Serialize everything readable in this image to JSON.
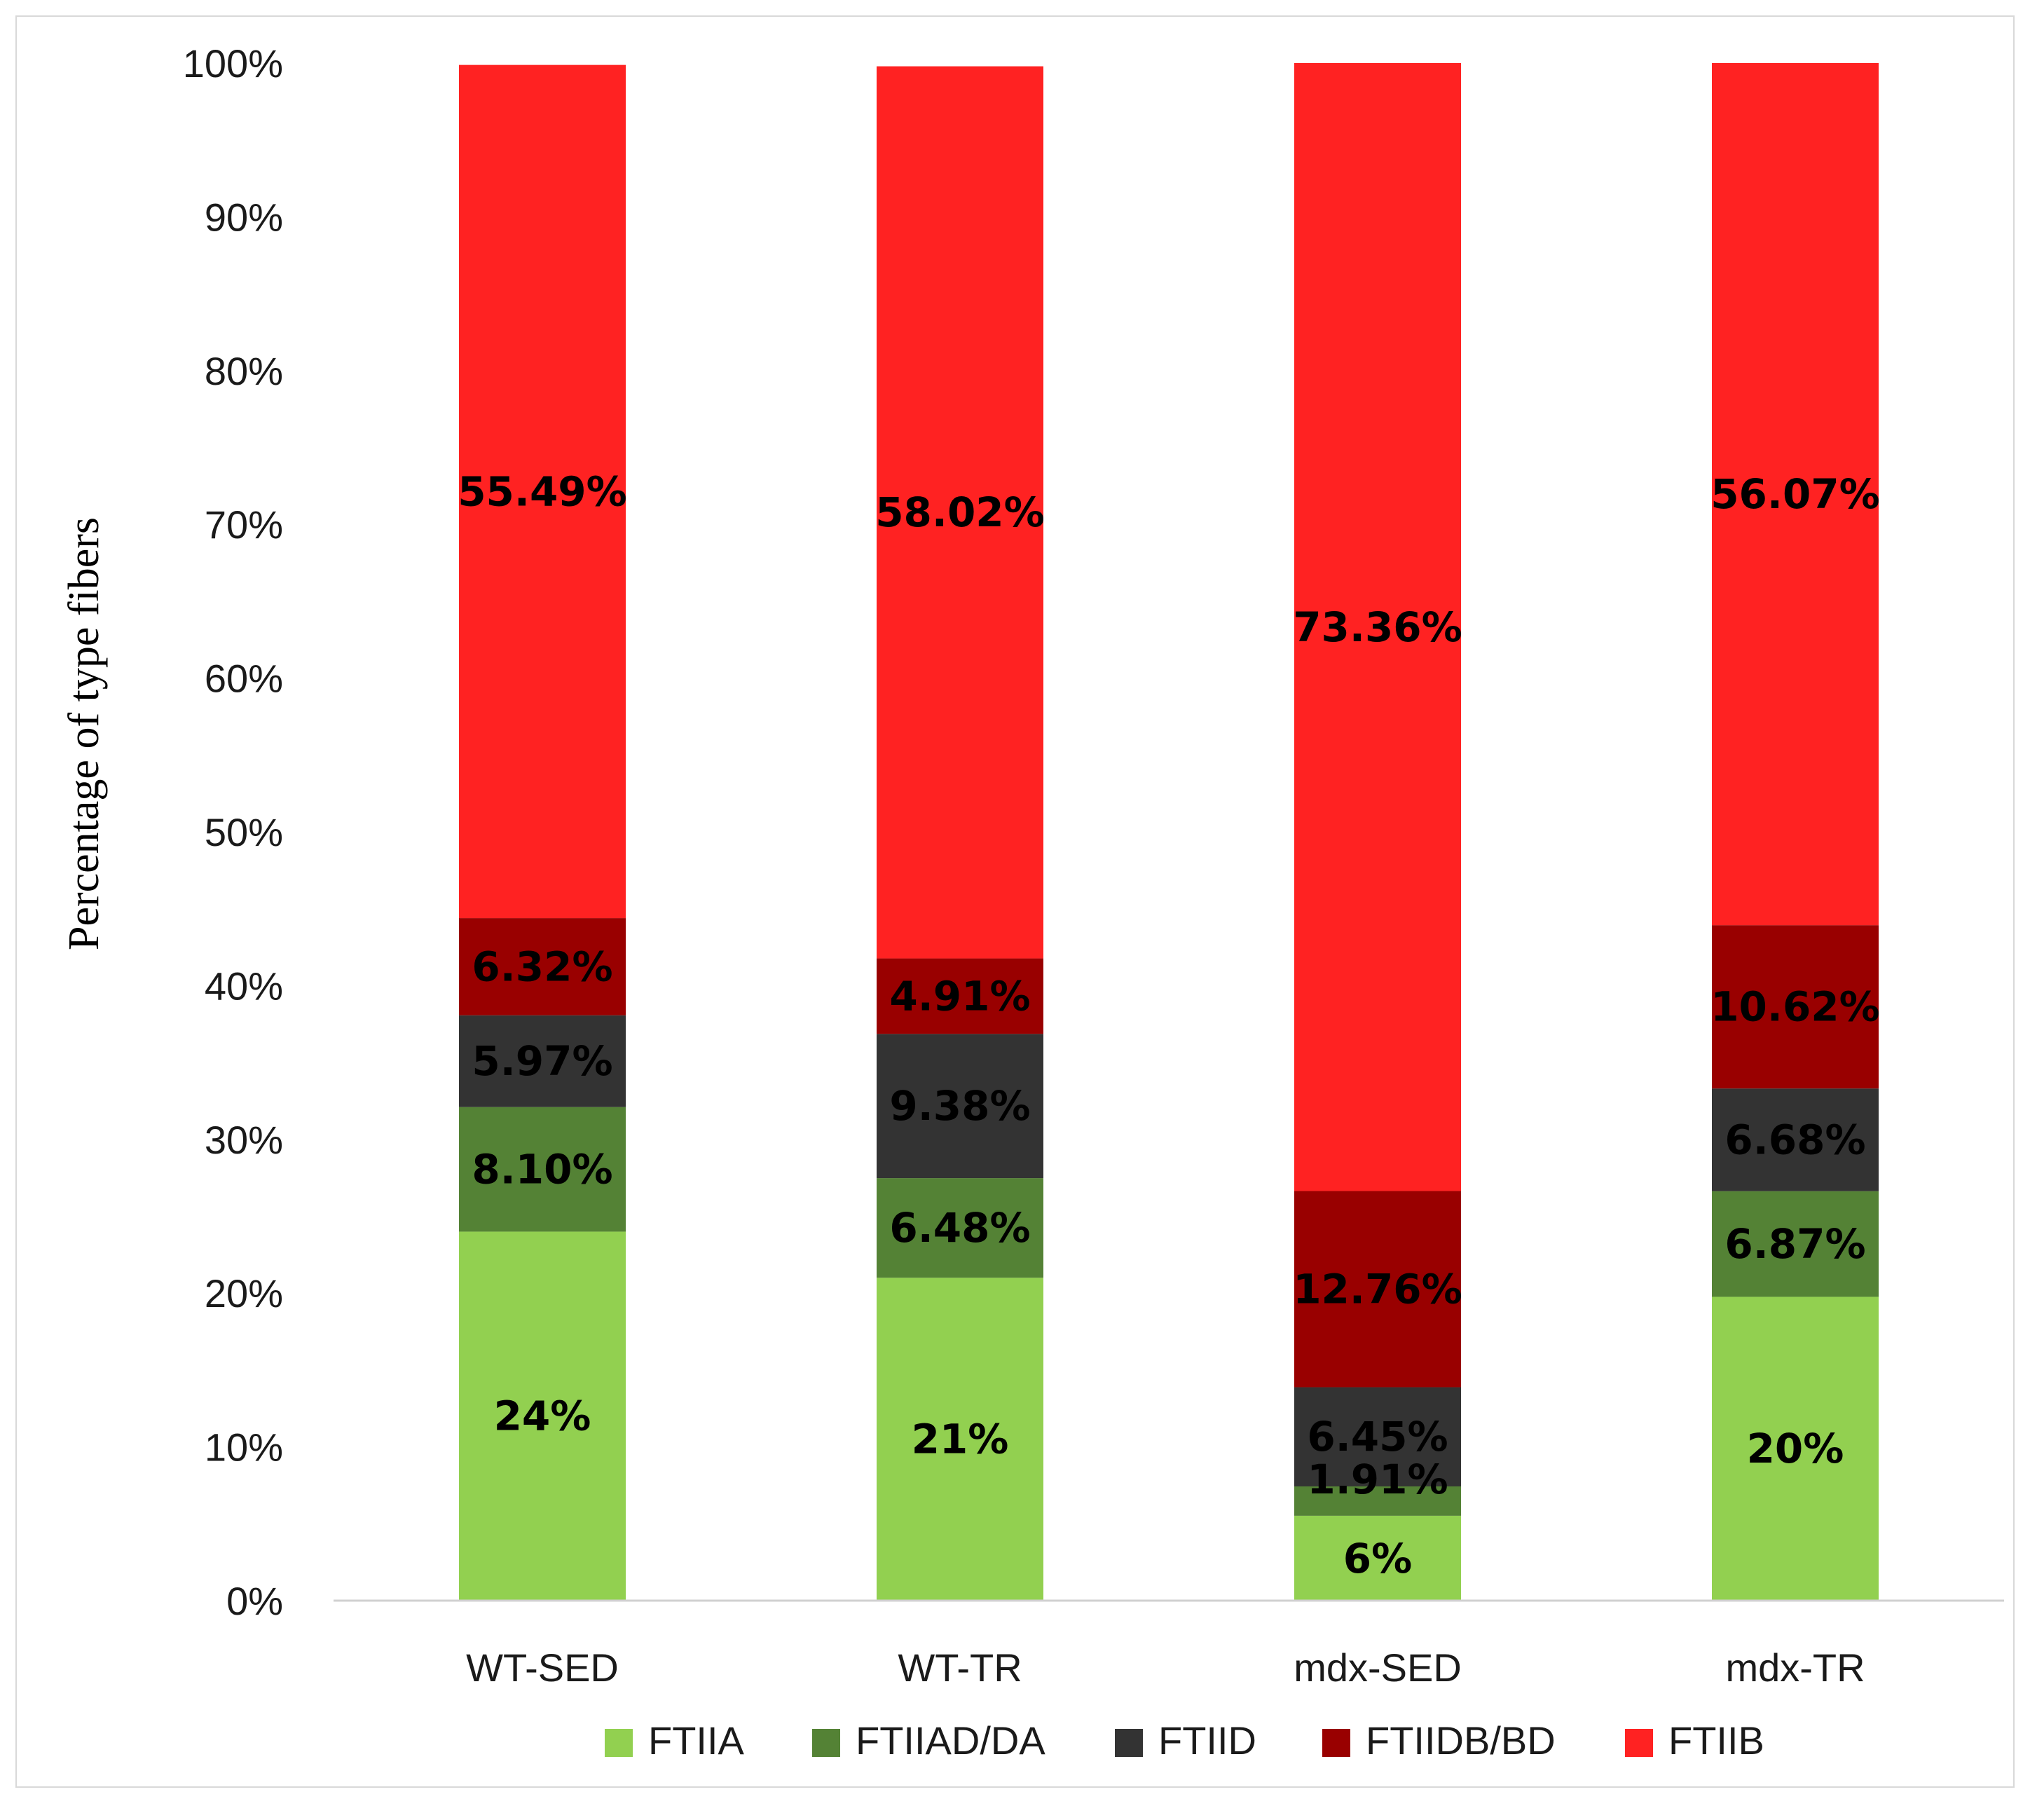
{
  "chart_data": {
    "type": "bar",
    "stacked": true,
    "categories": [
      "WT-SED",
      "WT-TR",
      "mdx-SED",
      "mdx-TR"
    ],
    "ylabel": "Percentage of type fibers",
    "xlabel": "",
    "ylim": [
      0,
      100
    ],
    "yticks": [
      "0%",
      "10%",
      "20%",
      "30%",
      "40%",
      "50%",
      "60%",
      "70%",
      "80%",
      "90%",
      "100%"
    ],
    "grid": false,
    "legend_position": "bottom",
    "series": [
      {
        "name": "FTIIA",
        "color": "#92d050",
        "values": [
          24.0,
          21.0,
          5.52,
          19.76
        ],
        "labels": [
          "24%",
          "21%",
          "6%",
          "20%"
        ]
      },
      {
        "name": "FTIIAD/DA",
        "color": "#548235",
        "values": [
          8.1,
          6.48,
          1.91,
          6.87
        ],
        "labels": [
          "8.10%",
          "6.48%",
          "1.91%",
          "6.87%"
        ]
      },
      {
        "name": "FTIID",
        "color": "#333333",
        "values": [
          5.97,
          9.38,
          6.45,
          6.68
        ],
        "labels": [
          "5.97%",
          "9.38%",
          "6.45%",
          "6.68%"
        ]
      },
      {
        "name": "FTIIDB/BD",
        "color": "#990000",
        "values": [
          6.32,
          4.91,
          12.76,
          10.62
        ],
        "labels": [
          "6.32%",
          "4.91%",
          "12.76%",
          "10.62%"
        ]
      },
      {
        "name": "FTIIB",
        "color": "#ff2222",
        "values": [
          55.49,
          58.02,
          73.36,
          56.07
        ],
        "labels": [
          "55.49%",
          "58.02%",
          "73.36%",
          "56.07%"
        ]
      }
    ]
  }
}
